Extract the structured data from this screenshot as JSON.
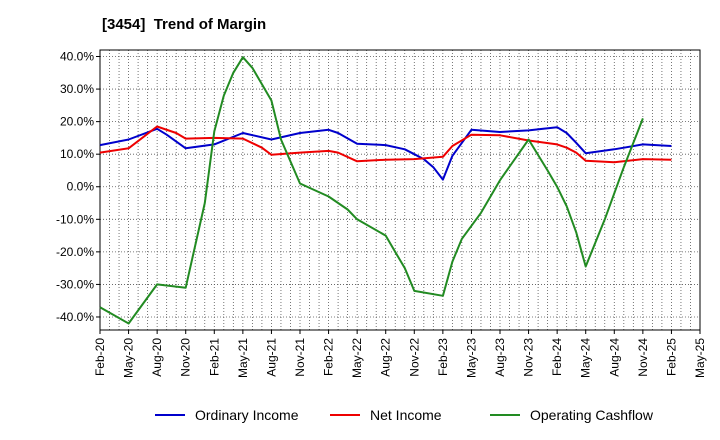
{
  "chart_data": {
    "type": "line",
    "title": "[3454]  Trend of Margin",
    "xlabel": "",
    "ylabel": "",
    "ylim": [
      -44,
      42
    ],
    "yticks": [
      40,
      30,
      20,
      10,
      0,
      -10,
      -20,
      -30,
      -40
    ],
    "ytick_labels": [
      "40.0%",
      "30.0%",
      "20.0%",
      "10.0%",
      "0.0%",
      "-10.0%",
      "-20.0%",
      "-30.0%",
      "-40.0%"
    ],
    "xtick_labels": [
      "Feb-20",
      "May-20",
      "Aug-20",
      "Nov-20",
      "Feb-21",
      "May-21",
      "Aug-21",
      "Nov-21",
      "Feb-22",
      "May-22",
      "Aug-22",
      "Nov-22",
      "Feb-23",
      "May-23",
      "Aug-23",
      "Nov-23",
      "Feb-24",
      "May-24",
      "Aug-24",
      "Nov-24",
      "Feb-25",
      "May-25"
    ],
    "grid": true,
    "legend_position": "bottom",
    "x_unit": "month index from Feb-20",
    "series": [
      {
        "name": "Ordinary Income",
        "color": "#0000cc",
        "points": [
          [
            0,
            12.8
          ],
          [
            3,
            14.5
          ],
          [
            6,
            17.8
          ],
          [
            7,
            16.0
          ],
          [
            9,
            11.8
          ],
          [
            12,
            13.0
          ],
          [
            15,
            16.5
          ],
          [
            18,
            14.5
          ],
          [
            21,
            16.5
          ],
          [
            24,
            17.5
          ],
          [
            25,
            16.5
          ],
          [
            27,
            13.2
          ],
          [
            30,
            12.8
          ],
          [
            32,
            11.5
          ],
          [
            33,
            10.0
          ],
          [
            34,
            8.5
          ],
          [
            35,
            6.0
          ],
          [
            36,
            2.2
          ],
          [
            37,
            9.5
          ],
          [
            39,
            17.5
          ],
          [
            42,
            16.8
          ],
          [
            45,
            17.3
          ],
          [
            48,
            18.3
          ],
          [
            49,
            16.5
          ],
          [
            50,
            13.5
          ],
          [
            51,
            10.3
          ],
          [
            54,
            11.5
          ],
          [
            57,
            13.0
          ],
          [
            60,
            12.5
          ]
        ]
      },
      {
        "name": "Net Income",
        "color": "#ee0000",
        "points": [
          [
            0,
            10.5
          ],
          [
            3,
            11.8
          ],
          [
            6,
            18.5
          ],
          [
            8,
            16.5
          ],
          [
            9,
            14.8
          ],
          [
            12,
            15.0
          ],
          [
            15,
            14.8
          ],
          [
            17,
            12.0
          ],
          [
            18,
            9.8
          ],
          [
            21,
            10.5
          ],
          [
            24,
            11.0
          ],
          [
            25,
            10.5
          ],
          [
            27,
            7.8
          ],
          [
            30,
            8.3
          ],
          [
            33,
            8.5
          ],
          [
            36,
            9.2
          ],
          [
            37,
            12.5
          ],
          [
            39,
            16.0
          ],
          [
            42,
            15.8
          ],
          [
            45,
            14.2
          ],
          [
            48,
            13.0
          ],
          [
            49,
            12.0
          ],
          [
            50,
            10.5
          ],
          [
            51,
            8.0
          ],
          [
            54,
            7.5
          ],
          [
            57,
            8.5
          ],
          [
            60,
            8.3
          ]
        ]
      },
      {
        "name": "Operating Cashflow",
        "color": "#228b22",
        "points": [
          [
            0,
            -37.0
          ],
          [
            3,
            -42.0
          ],
          [
            6,
            -30.0
          ],
          [
            9,
            -31.0
          ],
          [
            11,
            -5.0
          ],
          [
            12,
            17.0
          ],
          [
            13,
            28.0
          ],
          [
            14,
            35.0
          ],
          [
            15,
            39.8
          ],
          [
            16,
            36.5
          ],
          [
            18,
            26.5
          ],
          [
            19,
            14.5
          ],
          [
            21,
            1.0
          ],
          [
            24,
            -3.0
          ],
          [
            26,
            -7.0
          ],
          [
            27,
            -10.0
          ],
          [
            30,
            -15.0
          ],
          [
            31,
            -20.0
          ],
          [
            32,
            -25.0
          ],
          [
            33,
            -32.0
          ],
          [
            36,
            -33.5
          ],
          [
            37,
            -23.0
          ],
          [
            38,
            -16.0
          ],
          [
            40,
            -8.0
          ],
          [
            42,
            2.0
          ],
          [
            45,
            14.5
          ],
          [
            47,
            5.0
          ],
          [
            48,
            0.0
          ],
          [
            49,
            -6.0
          ],
          [
            50,
            -14.0
          ],
          [
            51,
            -24.5
          ],
          [
            53,
            -10.0
          ],
          [
            55,
            6.0
          ],
          [
            57,
            21.0
          ]
        ]
      }
    ]
  }
}
